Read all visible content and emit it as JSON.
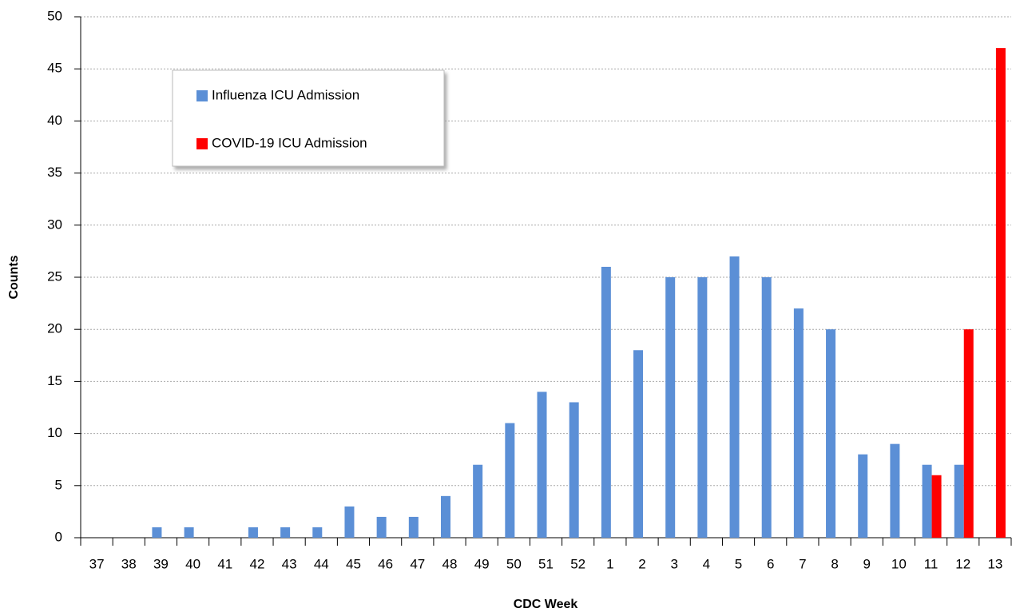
{
  "chart_data": {
    "type": "bar",
    "x_label": "CDC Week",
    "y_label": "Counts",
    "categories": [
      "37",
      "38",
      "39",
      "40",
      "41",
      "42",
      "43",
      "44",
      "45",
      "46",
      "47",
      "48",
      "49",
      "50",
      "51",
      "52",
      "1",
      "2",
      "3",
      "4",
      "5",
      "6",
      "7",
      "8",
      "9",
      "10",
      "11",
      "12",
      "13"
    ],
    "series": [
      {
        "name": "Influenza ICU Admission",
        "color": "#5b8fd6",
        "values": [
          0,
          0,
          1,
          1,
          0,
          1,
          1,
          1,
          3,
          2,
          2,
          4,
          7,
          11,
          14,
          13,
          26,
          18,
          25,
          25,
          27,
          25,
          22,
          20,
          8,
          9,
          7,
          7,
          0
        ]
      },
      {
        "name": "COVID-19 ICU Admission",
        "color": "#ff0000",
        "values": [
          0,
          0,
          0,
          0,
          0,
          0,
          0,
          0,
          0,
          0,
          0,
          0,
          0,
          0,
          0,
          0,
          0,
          0,
          0,
          0,
          0,
          0,
          0,
          0,
          0,
          0,
          6,
          20,
          47
        ]
      }
    ],
    "ylim": [
      0,
      50
    ],
    "yticks": [
      0,
      5,
      10,
      15,
      20,
      25,
      30,
      35,
      40,
      45,
      50
    ],
    "grid": true,
    "legend": "upper left"
  }
}
